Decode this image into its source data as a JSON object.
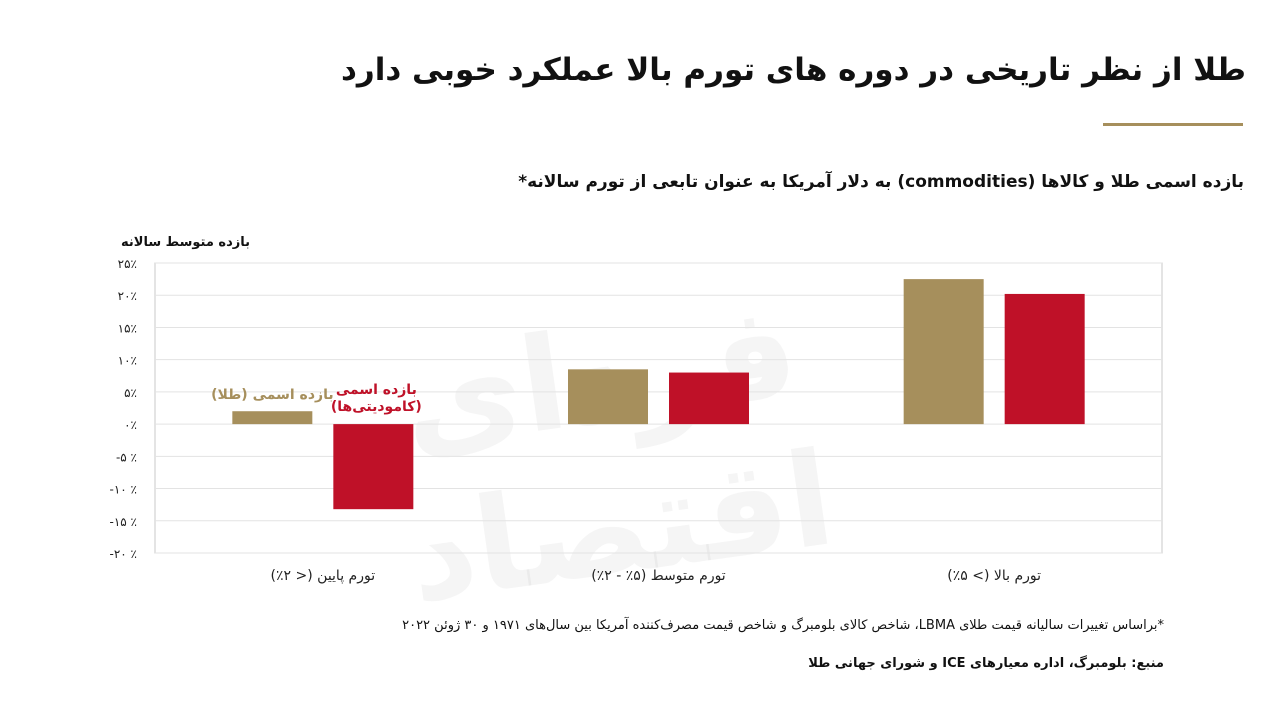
{
  "header": {
    "title": "طلا از نظر تاریخی در دوره های تورم بالا عملکرد خوبی دارد"
  },
  "colors": {
    "gold": "#a68f5c",
    "red": "#bf1128",
    "grid": "#e3e3e3",
    "axis": "#c9c9c9"
  },
  "chart_data": {
    "type": "bar",
    "title": "بازده اسمی طلا و کالاها (commodities) به دلار آمریکا به عنوان تابعی از تورم سالانه*",
    "ylabel": "بازده متوسط سالانه",
    "xlabel": "",
    "ylim": [
      -20,
      25
    ],
    "yticks": [
      25,
      20,
      15,
      10,
      5,
      0,
      -5,
      -10,
      -15,
      -20
    ],
    "ytick_labels": [
      "۲۵٪",
      "۲۰٪",
      "۱۵٪",
      "۱۰٪",
      "۵٪",
      "۰٪",
      "-۵ ٪",
      "-۱۰ ٪",
      "-۱۵ ٪",
      "-۲۰ ٪"
    ],
    "grid": true,
    "categories": [
      "تورم پایین (< ۲٪)",
      "تورم متوسط (۵٪ - ۲٪)",
      "تورم بالا (> ۵٪)"
    ],
    "series": [
      {
        "name": "بازده اسمی (طلا)",
        "color": "#a68f5c",
        "values": [
          2,
          8.5,
          22.5
        ]
      },
      {
        "name": "بازده اسمی (کامودیتی‌ها)",
        "color": "#bf1128",
        "values": [
          -13.2,
          8,
          20.2
        ]
      }
    ],
    "series_label_lines": [
      [
        "بازده اسمی (طلا)"
      ],
      [
        "بازده اسمی",
        "(کامودیتی‌ها)"
      ]
    ]
  },
  "footnote": "*براساس تغییرات سالیانه قیمت طلای LBMA، شاخص کالای بلومبرگ و شاخص قیمت مصرف‌کننده آمریکا بین سال‌های ۱۹۷۱ و ۳۰ ژوئن ۲۰۲۲",
  "source": "منبع: بلومبرگ، اداره معیارهای ICE و شورای جهانی طلا",
  "watermark": "فردای اقتصاد"
}
